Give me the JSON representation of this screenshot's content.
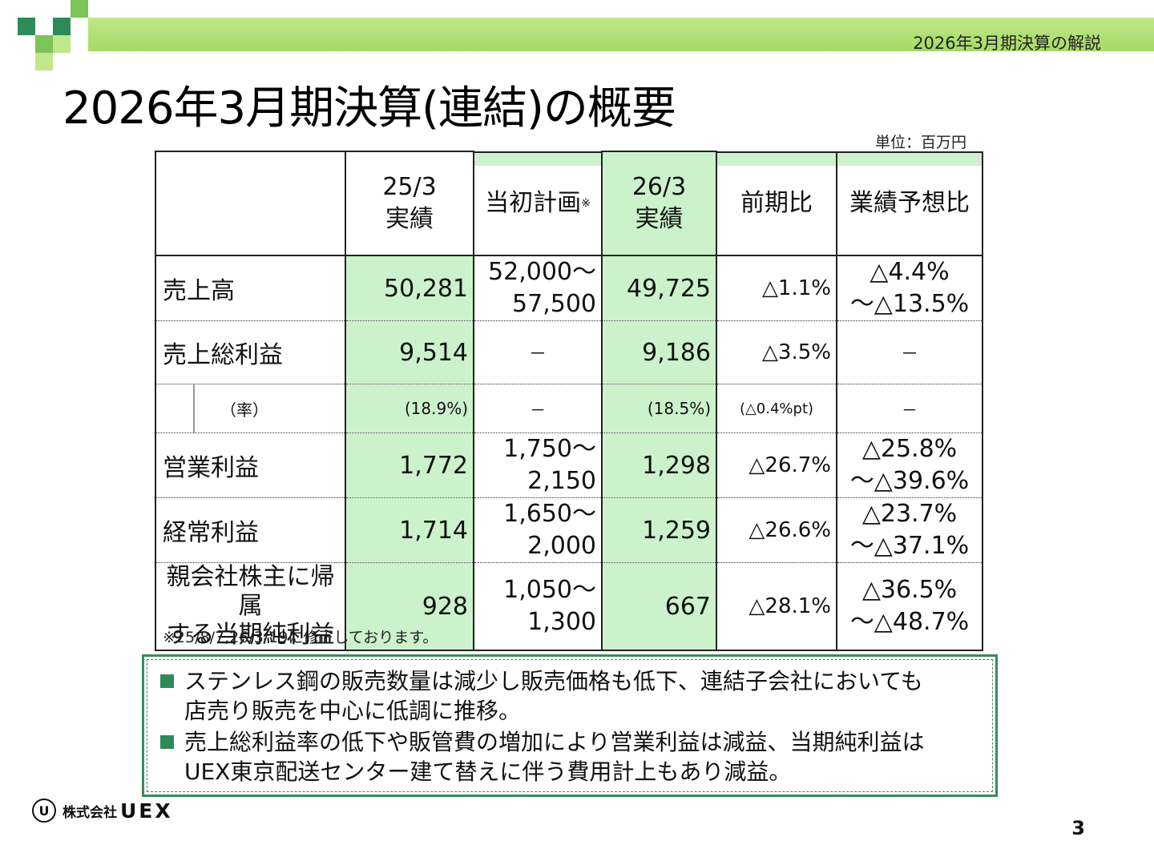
{
  "header": {
    "breadcrumb": "2026年3月期決算の解説",
    "title": "2026年3月期決算(連結)の概要",
    "unit": "単位：百万円",
    "decor_colors": [
      "#2e8b57",
      "#7cc35a",
      "#bfe88a"
    ]
  },
  "table": {
    "columns": {
      "prev_actual": [
        "25/3",
        "実績"
      ],
      "plan": "当初計画",
      "plan_mark": "※",
      "curr_actual": [
        "26/3",
        "実績"
      ],
      "yoy": "前期比",
      "vs_forecast": "業績予想比"
    },
    "rows": [
      {
        "label": "売上高",
        "prev": "50,281",
        "plan": [
          "52,000～",
          "57,500"
        ],
        "curr": "49,725",
        "yoy": "△1.1%",
        "vs": [
          "△4.4%",
          "～△13.5%"
        ]
      },
      {
        "label": "売上総利益",
        "prev": "9,514",
        "plan": [
          "－"
        ],
        "curr": "9,186",
        "yoy": "△3.5%",
        "vs": [
          "－"
        ]
      },
      {
        "label": "（率）",
        "prev": "(18.9%)",
        "plan": [
          "－"
        ],
        "curr": "(18.5%)",
        "yoy": "(△0.4%pt)",
        "vs": [
          "－"
        ]
      },
      {
        "label": "営業利益",
        "prev": "1,772",
        "plan": [
          "1,750～",
          "2,150"
        ],
        "curr": "1,298",
        "yoy": "△26.7%",
        "vs": [
          "△25.8%",
          "～△39.6%"
        ]
      },
      {
        "label": "経常利益",
        "prev": "1,714",
        "plan": [
          "1,650～",
          "2,000"
        ],
        "curr": "1,259",
        "yoy": "△26.6%",
        "vs": [
          "△23.7%",
          "～△37.1%"
        ]
      },
      {
        "label": [
          "親会社株主に帰属",
          "する当期純利益"
        ],
        "prev": "928",
        "plan": [
          "1,050～",
          "1,300"
        ],
        "curr": "667",
        "yoy": "△28.1%",
        "vs": [
          "△36.5%",
          "～△48.7%"
        ]
      }
    ],
    "footnote": "※25/8/7,26/3/19に修正しております。",
    "highlight_color": "#ccf2cc"
  },
  "summary": {
    "bullets": [
      [
        "ステンレス鋼の販売数量は減少し販売価格も低下、連結子会社においても",
        "店売り販売を中心に低調に推移。"
      ],
      [
        "売上総利益率の低下や販管費の増加により営業利益は減益、当期純利益は",
        "UEX東京配送センター建て替えに伴う費用計上もあり減益。"
      ]
    ],
    "border_color": "#3a8a5a"
  },
  "footer": {
    "logo_mark": "U",
    "company_prefix": "株式会社",
    "company_name": "UEX",
    "page_number": "3"
  }
}
